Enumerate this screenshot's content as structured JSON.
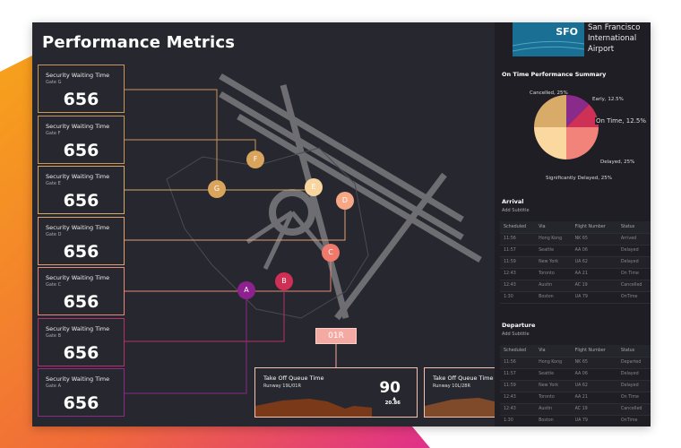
{
  "title": "Performance Metrics",
  "cards": [
    {
      "label": "Security Waiting Time",
      "gate": "Gate G",
      "value": "656",
      "color": "#c8965a"
    },
    {
      "label": "Security Waiting Time",
      "gate": "Gate F",
      "value": "656",
      "color": "#c8965a"
    },
    {
      "label": "Security Waiting Time",
      "gate": "Gate E",
      "value": "656",
      "color": "#d7a868"
    },
    {
      "label": "Security Waiting Time",
      "gate": "Gate D",
      "value": "656",
      "color": "#e0a070"
    },
    {
      "label": "Security Waiting Time",
      "gate": "Gate C",
      "value": "656",
      "color": "#e48a7a"
    },
    {
      "label": "Security Waiting Time",
      "gate": "Gate B",
      "value": "656",
      "color": "#b8306a"
    },
    {
      "label": "Security Waiting Time",
      "gate": "Gate A",
      "value": "656",
      "color": "#8a2a8a"
    }
  ],
  "gates": [
    {
      "label": "F",
      "color": "#d9a45c"
    },
    {
      "label": "G",
      "color": "#d9a45c"
    },
    {
      "label": "E",
      "color": "#f8d49e"
    },
    {
      "label": "D",
      "color": "#f7a785"
    },
    {
      "label": "C",
      "color": "#ef7a6c"
    },
    {
      "label": "B",
      "color": "#cf2f55"
    },
    {
      "label": "A",
      "color": "#8e2090"
    }
  ],
  "runway_label": "01R",
  "queues": [
    {
      "title": "Take Off Queue Time",
      "runway": "Runway 19L/01R",
      "value": "90",
      "delta": "20.86",
      "color": "#ff7152"
    },
    {
      "title": "Take Off Queue Time",
      "runway": "Runway 10L/28R",
      "color": "#f7944a"
    }
  ],
  "airport": {
    "code": "SFO",
    "name": [
      "San Francisco",
      "International",
      "Airport"
    ]
  },
  "pie": {
    "title": "On Time Performance Summary",
    "slices": [
      {
        "label": "Early, 12.5%",
        "value": 12.5,
        "color": "#8a2a8a"
      },
      {
        "label": "On Time, 12.5%",
        "value": 12.5,
        "color": "#cf3056"
      },
      {
        "label": "Delayed, 25%",
        "value": 25,
        "color": "#f2837a"
      },
      {
        "label": "Significantly Delayed, 25%",
        "value": 25,
        "color": "#fbd8a0"
      },
      {
        "label": "Cancelled, 25%",
        "value": 25,
        "color": "#d9ab68"
      }
    ]
  },
  "arrival": {
    "title": "Arrival",
    "subtitle": "Add Subtitle",
    "columns": [
      "Scheduled",
      "Via",
      "Flight Number",
      "Status"
    ],
    "rows": [
      [
        "11:56",
        "Hong Kong",
        "NK 65",
        "Arrived"
      ],
      [
        "11:57",
        "Seattle",
        "AA 06",
        "Delayed"
      ],
      [
        "11:59",
        "New York",
        "UA 62",
        "Delayed"
      ],
      [
        "12:43",
        "Toronto",
        "AA 21",
        "On Time"
      ],
      [
        "12:43",
        "Austin",
        "AC 19",
        "Cancelled"
      ],
      [
        "1:30",
        "Boston",
        "UA 79",
        "OnTime"
      ]
    ]
  },
  "departure": {
    "title": "Departure",
    "subtitle": "Add Subtitle",
    "columns": [
      "Scheduled",
      "Via",
      "Flight Number",
      "Status"
    ],
    "rows": [
      [
        "11:56",
        "Hong Kong",
        "NK 65",
        "Departed"
      ],
      [
        "11:57",
        "Seattle",
        "AA 06",
        "Delayed"
      ],
      [
        "11:59",
        "New York",
        "UA 62",
        "Delayed"
      ],
      [
        "12:43",
        "Toronto",
        "AA 21",
        "On Time"
      ],
      [
        "12:43",
        "Austin",
        "AC 19",
        "Cancelled"
      ],
      [
        "1:30",
        "Boston",
        "UA 79",
        "OnTime"
      ]
    ]
  }
}
